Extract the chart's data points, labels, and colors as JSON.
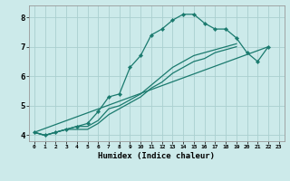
{
  "title": "",
  "xlabel": "Humidex (Indice chaleur)",
  "ylabel": "",
  "background_color": "#cceaea",
  "line_color": "#1a7a6e",
  "grid_color": "#aacfcf",
  "xlim": [
    -0.5,
    23.5
  ],
  "ylim": [
    3.8,
    8.4
  ],
  "xticks": [
    0,
    1,
    2,
    3,
    4,
    5,
    6,
    7,
    8,
    9,
    10,
    11,
    12,
    13,
    14,
    15,
    16,
    17,
    18,
    19,
    20,
    21,
    22,
    23
  ],
  "yticks": [
    4,
    5,
    6,
    7,
    8
  ],
  "series": [
    {
      "x": [
        0,
        1,
        2,
        3,
        4,
        5,
        6,
        7,
        8,
        9,
        10,
        11,
        12,
        13,
        14,
        15,
        16,
        17,
        18,
        19,
        20,
        21,
        22
      ],
      "y": [
        4.1,
        4.0,
        4.1,
        4.2,
        4.3,
        4.4,
        4.8,
        5.3,
        5.4,
        6.3,
        6.7,
        7.4,
        7.6,
        7.9,
        8.1,
        8.1,
        7.8,
        7.6,
        7.6,
        7.3,
        6.8,
        6.5,
        7.0
      ],
      "has_markers": true
    },
    {
      "x": [
        0,
        1,
        2,
        3,
        4,
        5,
        6,
        7,
        8,
        9,
        10,
        11,
        12,
        13,
        14,
        15,
        16,
        17,
        18,
        19
      ],
      "y": [
        4.1,
        4.0,
        4.1,
        4.2,
        4.3,
        4.3,
        4.5,
        4.9,
        5.0,
        5.2,
        5.4,
        5.7,
        6.0,
        6.3,
        6.5,
        6.7,
        6.8,
        6.9,
        7.0,
        7.1
      ],
      "has_markers": false
    },
    {
      "x": [
        0,
        1,
        2,
        3,
        4,
        5,
        6,
        7,
        8,
        9,
        10,
        11,
        12,
        13,
        14,
        15,
        16,
        17,
        18,
        19
      ],
      "y": [
        4.1,
        4.0,
        4.1,
        4.2,
        4.2,
        4.2,
        4.4,
        4.7,
        4.9,
        5.1,
        5.3,
        5.6,
        5.8,
        6.1,
        6.3,
        6.5,
        6.6,
        6.8,
        6.9,
        7.0
      ],
      "has_markers": false
    },
    {
      "x": [
        0,
        22
      ],
      "y": [
        4.1,
        7.0
      ],
      "has_markers": false
    }
  ]
}
